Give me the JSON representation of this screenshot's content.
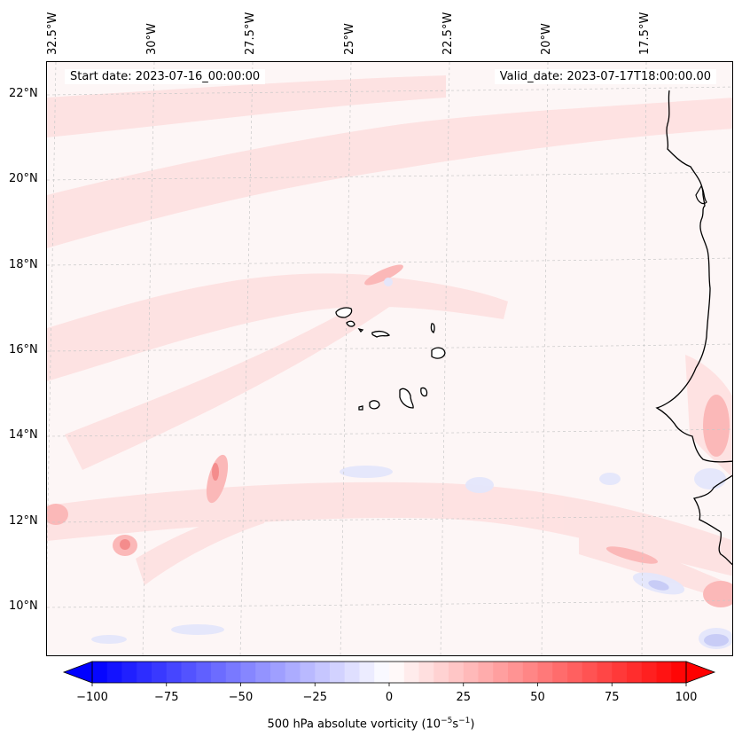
{
  "header": {
    "start_date": "Start date: 2023-07-16_00:00:00",
    "valid_date": "Valid_date: 2023-07-17T18:00:00.00"
  },
  "longitude_labels": [
    "32.5°W",
    "30°W",
    "27.5°W",
    "25°W",
    "22.5°W",
    "20°W",
    "17.5°W"
  ],
  "latitude_labels": [
    "22°N",
    "20°N",
    "18°N",
    "16°N",
    "14°N",
    "12°N",
    "10°N"
  ],
  "colorbar": {
    "ticks": [
      "−100",
      "−75",
      "−50",
      "−25",
      "0",
      "25",
      "50",
      "75",
      "100"
    ],
    "min": -100,
    "max": 100,
    "levels": 40,
    "label_prefix": "500 hPa absolute vorticity (",
    "label_unit": "10",
    "label_exp1": "−5",
    "label_s": "s",
    "label_exp2": "−1",
    "label_suffix": ")"
  },
  "colors": {
    "negative": "#0000ff",
    "positive": "#ff0000",
    "coastline": "#000000",
    "gridline": "#c8c8c8"
  }
}
